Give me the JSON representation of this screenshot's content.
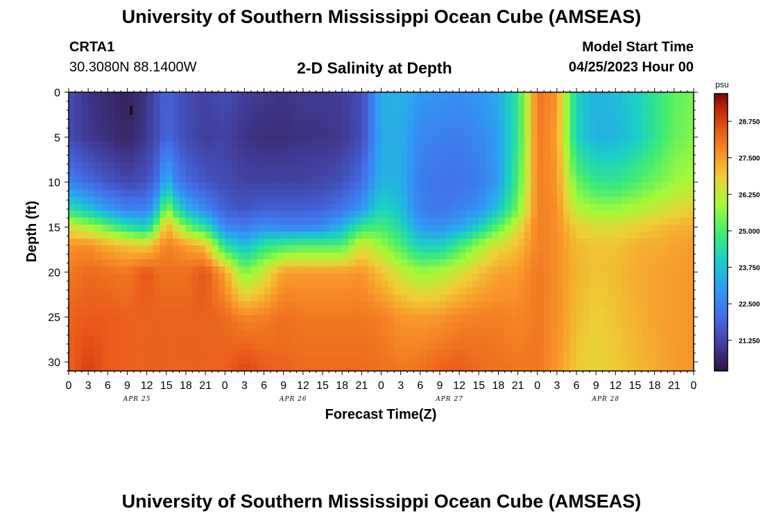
{
  "header": {
    "title": "University of Southern Mississippi Ocean Cube (AMSEAS)",
    "station_id": "CRTA1",
    "coordinates": "30.3080N  88.1400W",
    "chart_title": "2-D Salinity at Depth",
    "model_start_label": "Model Start Time",
    "model_start_value": "04/25/2023 Hour 00"
  },
  "footer": {
    "title": "University of Southern Mississippi Ocean Cube (AMSEAS)"
  },
  "chart_data": {
    "type": "heatmap",
    "title": "2-D Salinity at Depth",
    "xlabel": "Forecast Time(Z)",
    "ylabel": "Depth (ft)",
    "x_hours_range": [
      0,
      96
    ],
    "x_tick_labels": [
      "0",
      "3",
      "6",
      "9",
      "12",
      "15",
      "18",
      "21",
      "0",
      "3",
      "6",
      "9",
      "12",
      "15",
      "18",
      "21",
      "0",
      "3",
      "6",
      "9",
      "12",
      "15",
      "18",
      "21",
      "0",
      "3",
      "6",
      "9",
      "12",
      "15",
      "18",
      "21",
      "0"
    ],
    "date_labels": [
      "APR 25",
      "APR 26",
      "APR 27",
      "APR 28"
    ],
    "y_ticks": [
      0,
      5,
      10,
      15,
      20,
      25,
      30
    ],
    "y_range": [
      0,
      31
    ],
    "colorbar": {
      "unit": "psu",
      "ticks": [
        "28.750",
        "27.500",
        "26.250",
        "25.000",
        "23.750",
        "22.500",
        "21.250"
      ],
      "tick_values": [
        28.75,
        27.5,
        26.25,
        25.0,
        23.75,
        22.5,
        21.25
      ],
      "range": [
        20.2,
        29.7
      ]
    },
    "profile_hours": [
      0,
      3,
      6,
      9,
      12,
      14,
      15,
      16,
      18,
      21,
      24,
      27,
      30,
      33,
      36,
      39,
      42,
      45,
      48,
      51,
      54,
      57,
      60,
      63,
      66,
      69,
      72,
      75,
      78,
      81,
      84,
      87,
      90,
      93,
      96
    ],
    "profile_depths_ft": [
      0,
      5,
      10,
      13,
      15,
      17,
      20,
      25,
      31
    ],
    "salinity_psu": [
      [
        21.5,
        21.4,
        22.5,
        24.5,
        26.5,
        27.6,
        28.0,
        28.3,
        28.3
      ],
      [
        20.9,
        21.0,
        22.0,
        23.8,
        26.0,
        27.7,
        28.2,
        28.4,
        28.8
      ],
      [
        20.7,
        20.8,
        21.6,
        23.0,
        25.3,
        27.3,
        28.1,
        28.4,
        28.4
      ],
      [
        20.5,
        20.6,
        21.3,
        22.5,
        24.5,
        27.0,
        28.0,
        28.3,
        28.3
      ],
      [
        20.9,
        21.0,
        21.5,
        22.5,
        24.0,
        26.8,
        28.5,
        28.3,
        28.3
      ],
      [
        21.6,
        21.6,
        22.3,
        24.0,
        26.0,
        27.6,
        28.1,
        28.3,
        28.3
      ],
      [
        21.9,
        22.0,
        23.8,
        26.0,
        27.4,
        27.9,
        28.1,
        28.3,
        28.3
      ],
      [
        21.7,
        21.8,
        22.8,
        24.8,
        26.8,
        27.8,
        28.1,
        28.3,
        28.3
      ],
      [
        21.4,
        21.4,
        22.0,
        23.5,
        25.5,
        27.5,
        28.1,
        28.3,
        28.3
      ],
      [
        21.2,
        21.1,
        21.6,
        22.6,
        24.5,
        27.0,
        28.5,
        28.3,
        28.3
      ],
      [
        21.4,
        21.2,
        21.4,
        21.8,
        22.6,
        24.4,
        27.4,
        28.2,
        28.3
      ],
      [
        21.1,
        20.9,
        21.2,
        21.6,
        22.4,
        23.6,
        25.5,
        27.8,
        28.7
      ],
      [
        21.0,
        20.8,
        21.2,
        21.8,
        22.8,
        24.5,
        26.4,
        27.9,
        28.4
      ],
      [
        20.9,
        20.8,
        21.2,
        21.8,
        22.6,
        24.8,
        27.5,
        28.1,
        28.3
      ],
      [
        21.0,
        20.9,
        21.2,
        21.8,
        22.6,
        25.0,
        27.5,
        28.0,
        28.2
      ],
      [
        21.0,
        20.9,
        21.3,
        21.9,
        22.7,
        25.0,
        27.5,
        28.0,
        28.2
      ],
      [
        21.1,
        21.0,
        21.5,
        22.2,
        23.5,
        25.0,
        27.5,
        28.0,
        28.2
      ],
      [
        21.4,
        21.4,
        22.1,
        23.0,
        24.7,
        26.5,
        27.6,
        28.0,
        28.2
      ],
      [
        23.4,
        23.3,
        23.5,
        24.2,
        25.0,
        25.8,
        27.0,
        27.9,
        28.1
      ],
      [
        23.5,
        23.4,
        23.4,
        23.7,
        24.3,
        25.0,
        26.3,
        27.6,
        28.0
      ],
      [
        23.0,
        22.6,
        22.4,
        22.5,
        23.0,
        24.0,
        25.8,
        27.5,
        28.1
      ],
      [
        22.9,
        22.5,
        22.2,
        22.3,
        22.8,
        24.0,
        26.0,
        27.6,
        28.3
      ],
      [
        22.8,
        22.4,
        22.2,
        22.5,
        23.2,
        24.8,
        26.5,
        27.8,
        28.4
      ],
      [
        23.0,
        22.6,
        22.4,
        22.8,
        24.0,
        25.8,
        27.0,
        27.9,
        28.2
      ],
      [
        23.3,
        23.1,
        23.0,
        23.8,
        25.2,
        26.6,
        27.4,
        27.9,
        28.1
      ],
      [
        24.6,
        24.6,
        25.0,
        25.5,
        26.5,
        27.0,
        27.5,
        27.8,
        28.0
      ],
      [
        28.1,
        28.0,
        27.9,
        27.9,
        27.9,
        27.9,
        28.0,
        28.0,
        28.0
      ],
      [
        27.6,
        27.5,
        27.6,
        27.7,
        27.7,
        27.7,
        27.7,
        27.7,
        27.6
      ],
      [
        24.0,
        24.1,
        25.3,
        26.1,
        26.8,
        27.1,
        27.2,
        27.1,
        26.9
      ],
      [
        23.5,
        23.4,
        24.7,
        25.8,
        26.6,
        27.0,
        27.0,
        26.8,
        26.7
      ],
      [
        23.6,
        23.5,
        24.6,
        25.8,
        26.6,
        27.0,
        27.1,
        27.0,
        26.9
      ],
      [
        24.0,
        23.9,
        25.0,
        26.0,
        26.8,
        27.2,
        27.3,
        27.2,
        27.1
      ],
      [
        24.6,
        24.6,
        25.4,
        26.3,
        27.0,
        27.3,
        27.4,
        27.4,
        27.3
      ],
      [
        25.2,
        25.3,
        25.8,
        26.6,
        27.2,
        27.4,
        27.5,
        27.5,
        27.5
      ],
      [
        25.5,
        25.6,
        26.0,
        26.8,
        27.3,
        27.5,
        27.6,
        27.6,
        27.6
      ]
    ]
  }
}
